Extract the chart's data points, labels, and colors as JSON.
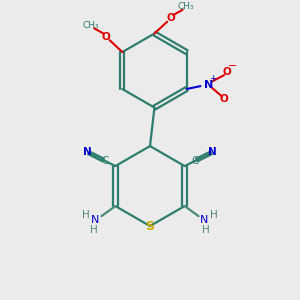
{
  "bg_color": "#ebebeb",
  "bond_color": "#2d7d6e",
  "bond_width": 1.6,
  "N_color": "#0000cc",
  "O_color": "#dd0000",
  "S_color": "#ccaa00",
  "C_color": "#2d7d6e",
  "NH_color": "#4a8a7a",
  "figsize": [
    3.0,
    3.0
  ],
  "dpi": 100,
  "xlim": [
    0,
    10
  ],
  "ylim": [
    0,
    10
  ]
}
